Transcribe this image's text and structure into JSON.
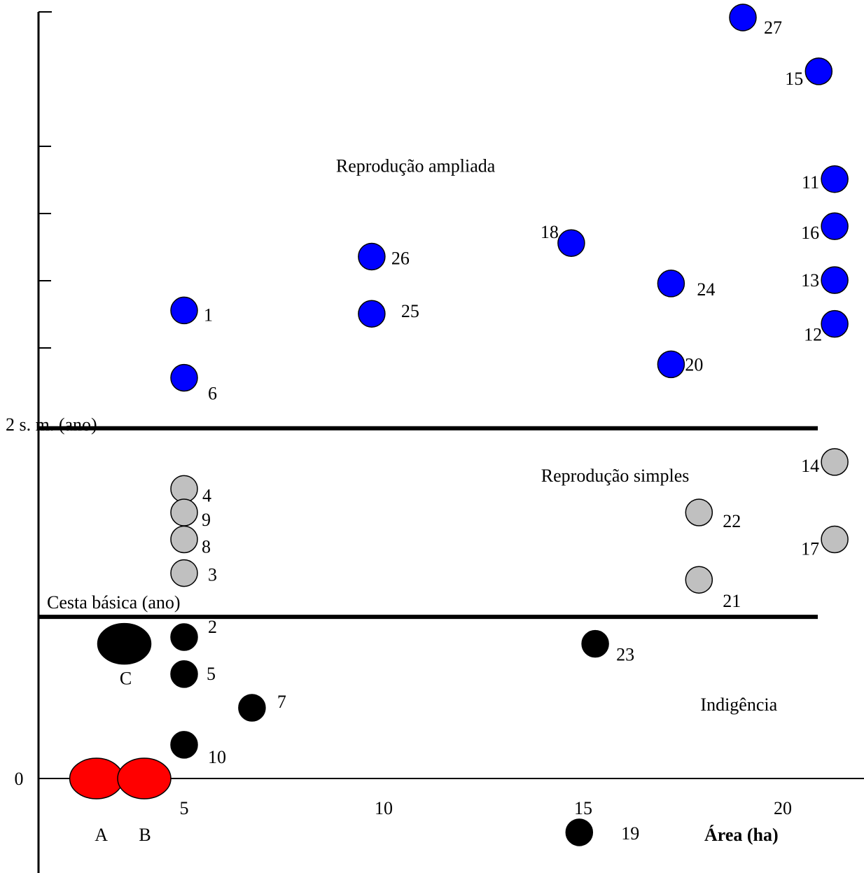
{
  "chart_data": {
    "type": "scatter",
    "title": "",
    "xlabel": "Área (ha)",
    "ylabel": "",
    "x_ticks": [
      "5",
      "10",
      "15",
      "20"
    ],
    "y_ticks": [
      "0"
    ],
    "xlim": [
      2,
      22.3
    ],
    "ylim": [
      -1.18,
      10.8
    ],
    "reference_lines": [
      {
        "name": "cesta",
        "label": "Cesta básica (ano)",
        "y": 2.4
      },
      {
        "name": "2sm",
        "label": "2 s. m. (ano)",
        "y": 5.2
      }
    ],
    "regions": [
      {
        "name": "ampliada",
        "label": "Reprodução ampliada",
        "x": 10.8,
        "y": 9.1
      },
      {
        "name": "simples",
        "label": "Reprodução simples",
        "x": 15.8,
        "y": 4.5
      },
      {
        "name": "indigencia",
        "label": "Indigência",
        "x": 18.9,
        "y": 1.1
      }
    ],
    "series": [
      {
        "class": "indigencia",
        "color": "#000000",
        "points": [
          {
            "label": "2",
            "x": 5.0,
            "y": 2.1
          },
          {
            "label": "5",
            "x": 5.0,
            "y": 1.55
          },
          {
            "label": "7",
            "x": 6.7,
            "y": 1.05
          },
          {
            "label": "10",
            "x": 5.0,
            "y": 0.5
          },
          {
            "label": "23",
            "x": 15.3,
            "y": 2.0
          },
          {
            "label": "19",
            "x": 14.9,
            "y": -0.8
          }
        ]
      },
      {
        "class": "simples",
        "color": "#c0c0c0",
        "points": [
          {
            "label": "4",
            "x": 5.0,
            "y": 4.3
          },
          {
            "label": "9",
            "x": 5.0,
            "y": 3.95
          },
          {
            "label": "8",
            "x": 5.0,
            "y": 3.55
          },
          {
            "label": "3",
            "x": 5.0,
            "y": 3.05
          },
          {
            "label": "22",
            "x": 17.9,
            "y": 3.95
          },
          {
            "label": "21",
            "x": 17.9,
            "y": 2.95
          },
          {
            "label": "14",
            "x": 21.3,
            "y": 4.7
          },
          {
            "label": "17",
            "x": 21.3,
            "y": 3.55
          }
        ]
      },
      {
        "class": "ampliada",
        "color": "#0000ff",
        "points": [
          {
            "label": "1",
            "x": 5.0,
            "y": 6.95
          },
          {
            "label": "6",
            "x": 5.0,
            "y": 5.95
          },
          {
            "label": "26",
            "x": 9.7,
            "y": 7.75
          },
          {
            "label": "25",
            "x": 9.7,
            "y": 6.9
          },
          {
            "label": "18",
            "x": 14.7,
            "y": 7.95
          },
          {
            "label": "24",
            "x": 17.2,
            "y": 7.35
          },
          {
            "label": "20",
            "x": 17.2,
            "y": 6.15
          },
          {
            "label": "27",
            "x": 19.0,
            "y": 11.3
          },
          {
            "label": "15",
            "x": 20.9,
            "y": 10.5
          },
          {
            "label": "11",
            "x": 21.3,
            "y": 8.9
          },
          {
            "label": "16",
            "x": 21.3,
            "y": 8.2
          },
          {
            "label": "13",
            "x": 21.3,
            "y": 7.4
          },
          {
            "label": "12",
            "x": 21.3,
            "y": 6.75
          }
        ]
      }
    ],
    "groups": [
      {
        "label": "A",
        "x": 2.8,
        "y": 0.0,
        "color": "#ff0000"
      },
      {
        "label": "B",
        "x": 4.0,
        "y": 0.0,
        "color": "#ff0000"
      },
      {
        "label": "C",
        "x": 3.5,
        "y": 2.0,
        "color": "#000000"
      }
    ]
  }
}
